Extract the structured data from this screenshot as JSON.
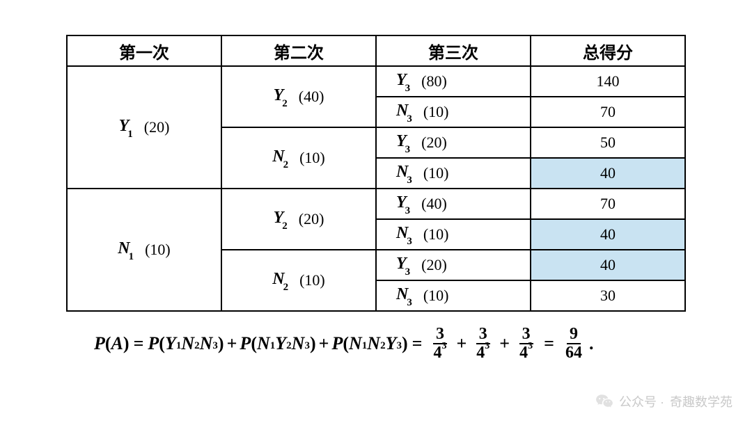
{
  "table": {
    "headers": [
      "第一次",
      "第二次",
      "第三次",
      "总得分"
    ],
    "col1": [
      {
        "var": "Y",
        "sub": "1",
        "val": "(20)"
      },
      {
        "var": "N",
        "sub": "1",
        "val": "(10)"
      }
    ],
    "col2": [
      {
        "var": "Y",
        "sub": "2",
        "val": "(40)"
      },
      {
        "var": "N",
        "sub": "2",
        "val": "(10)"
      },
      {
        "var": "Y",
        "sub": "2",
        "val": "(20)"
      },
      {
        "var": "N",
        "sub": "2",
        "val": "(10)"
      }
    ],
    "col3": [
      {
        "var": "Y",
        "sub": "3",
        "val": "(80)"
      },
      {
        "var": "N",
        "sub": "3",
        "val": "(10)"
      },
      {
        "var": "Y",
        "sub": "3",
        "val": "(20)"
      },
      {
        "var": "N",
        "sub": "3",
        "val": "(10)"
      },
      {
        "var": "Y",
        "sub": "3",
        "val": "(40)"
      },
      {
        "var": "N",
        "sub": "3",
        "val": "(10)"
      },
      {
        "var": "Y",
        "sub": "3",
        "val": "(20)"
      },
      {
        "var": "N",
        "sub": "3",
        "val": "(10)"
      }
    ],
    "scores": [
      "140",
      "70",
      "50",
      "40",
      "70",
      "40",
      "40",
      "30"
    ],
    "highlight_rows": [
      3,
      5,
      6
    ],
    "highlight_color": "#c9e3f2",
    "border_color": "#000000",
    "background_color": "#ffffff",
    "header_fontsize": 24,
    "cell_fontsize": 22
  },
  "formula": {
    "lhs_func": "P",
    "lhs_arg": "A",
    "terms": [
      {
        "a": "Y",
        "as": "1",
        "b": "N",
        "bs": "2",
        "c": "N",
        "cs": "3"
      },
      {
        "a": "N",
        "as": "1",
        "b": "Y",
        "bs": "2",
        "c": "N",
        "cs": "3"
      },
      {
        "a": "N",
        "as": "1",
        "b": "N",
        "bs": "2",
        "c": "Y",
        "cs": "3"
      }
    ],
    "fracs": [
      {
        "num": "3",
        "den_base": "4",
        "den_exp": "3"
      },
      {
        "num": "3",
        "den_base": "4",
        "den_exp": "3"
      },
      {
        "num": "3",
        "den_base": "4",
        "den_exp": "3"
      }
    ],
    "result": {
      "num": "9",
      "den": "64"
    },
    "punct": "."
  },
  "watermark": {
    "prefix": "公众号 ·",
    "name": "奇趣数学苑",
    "color": "#c9c9c9"
  }
}
